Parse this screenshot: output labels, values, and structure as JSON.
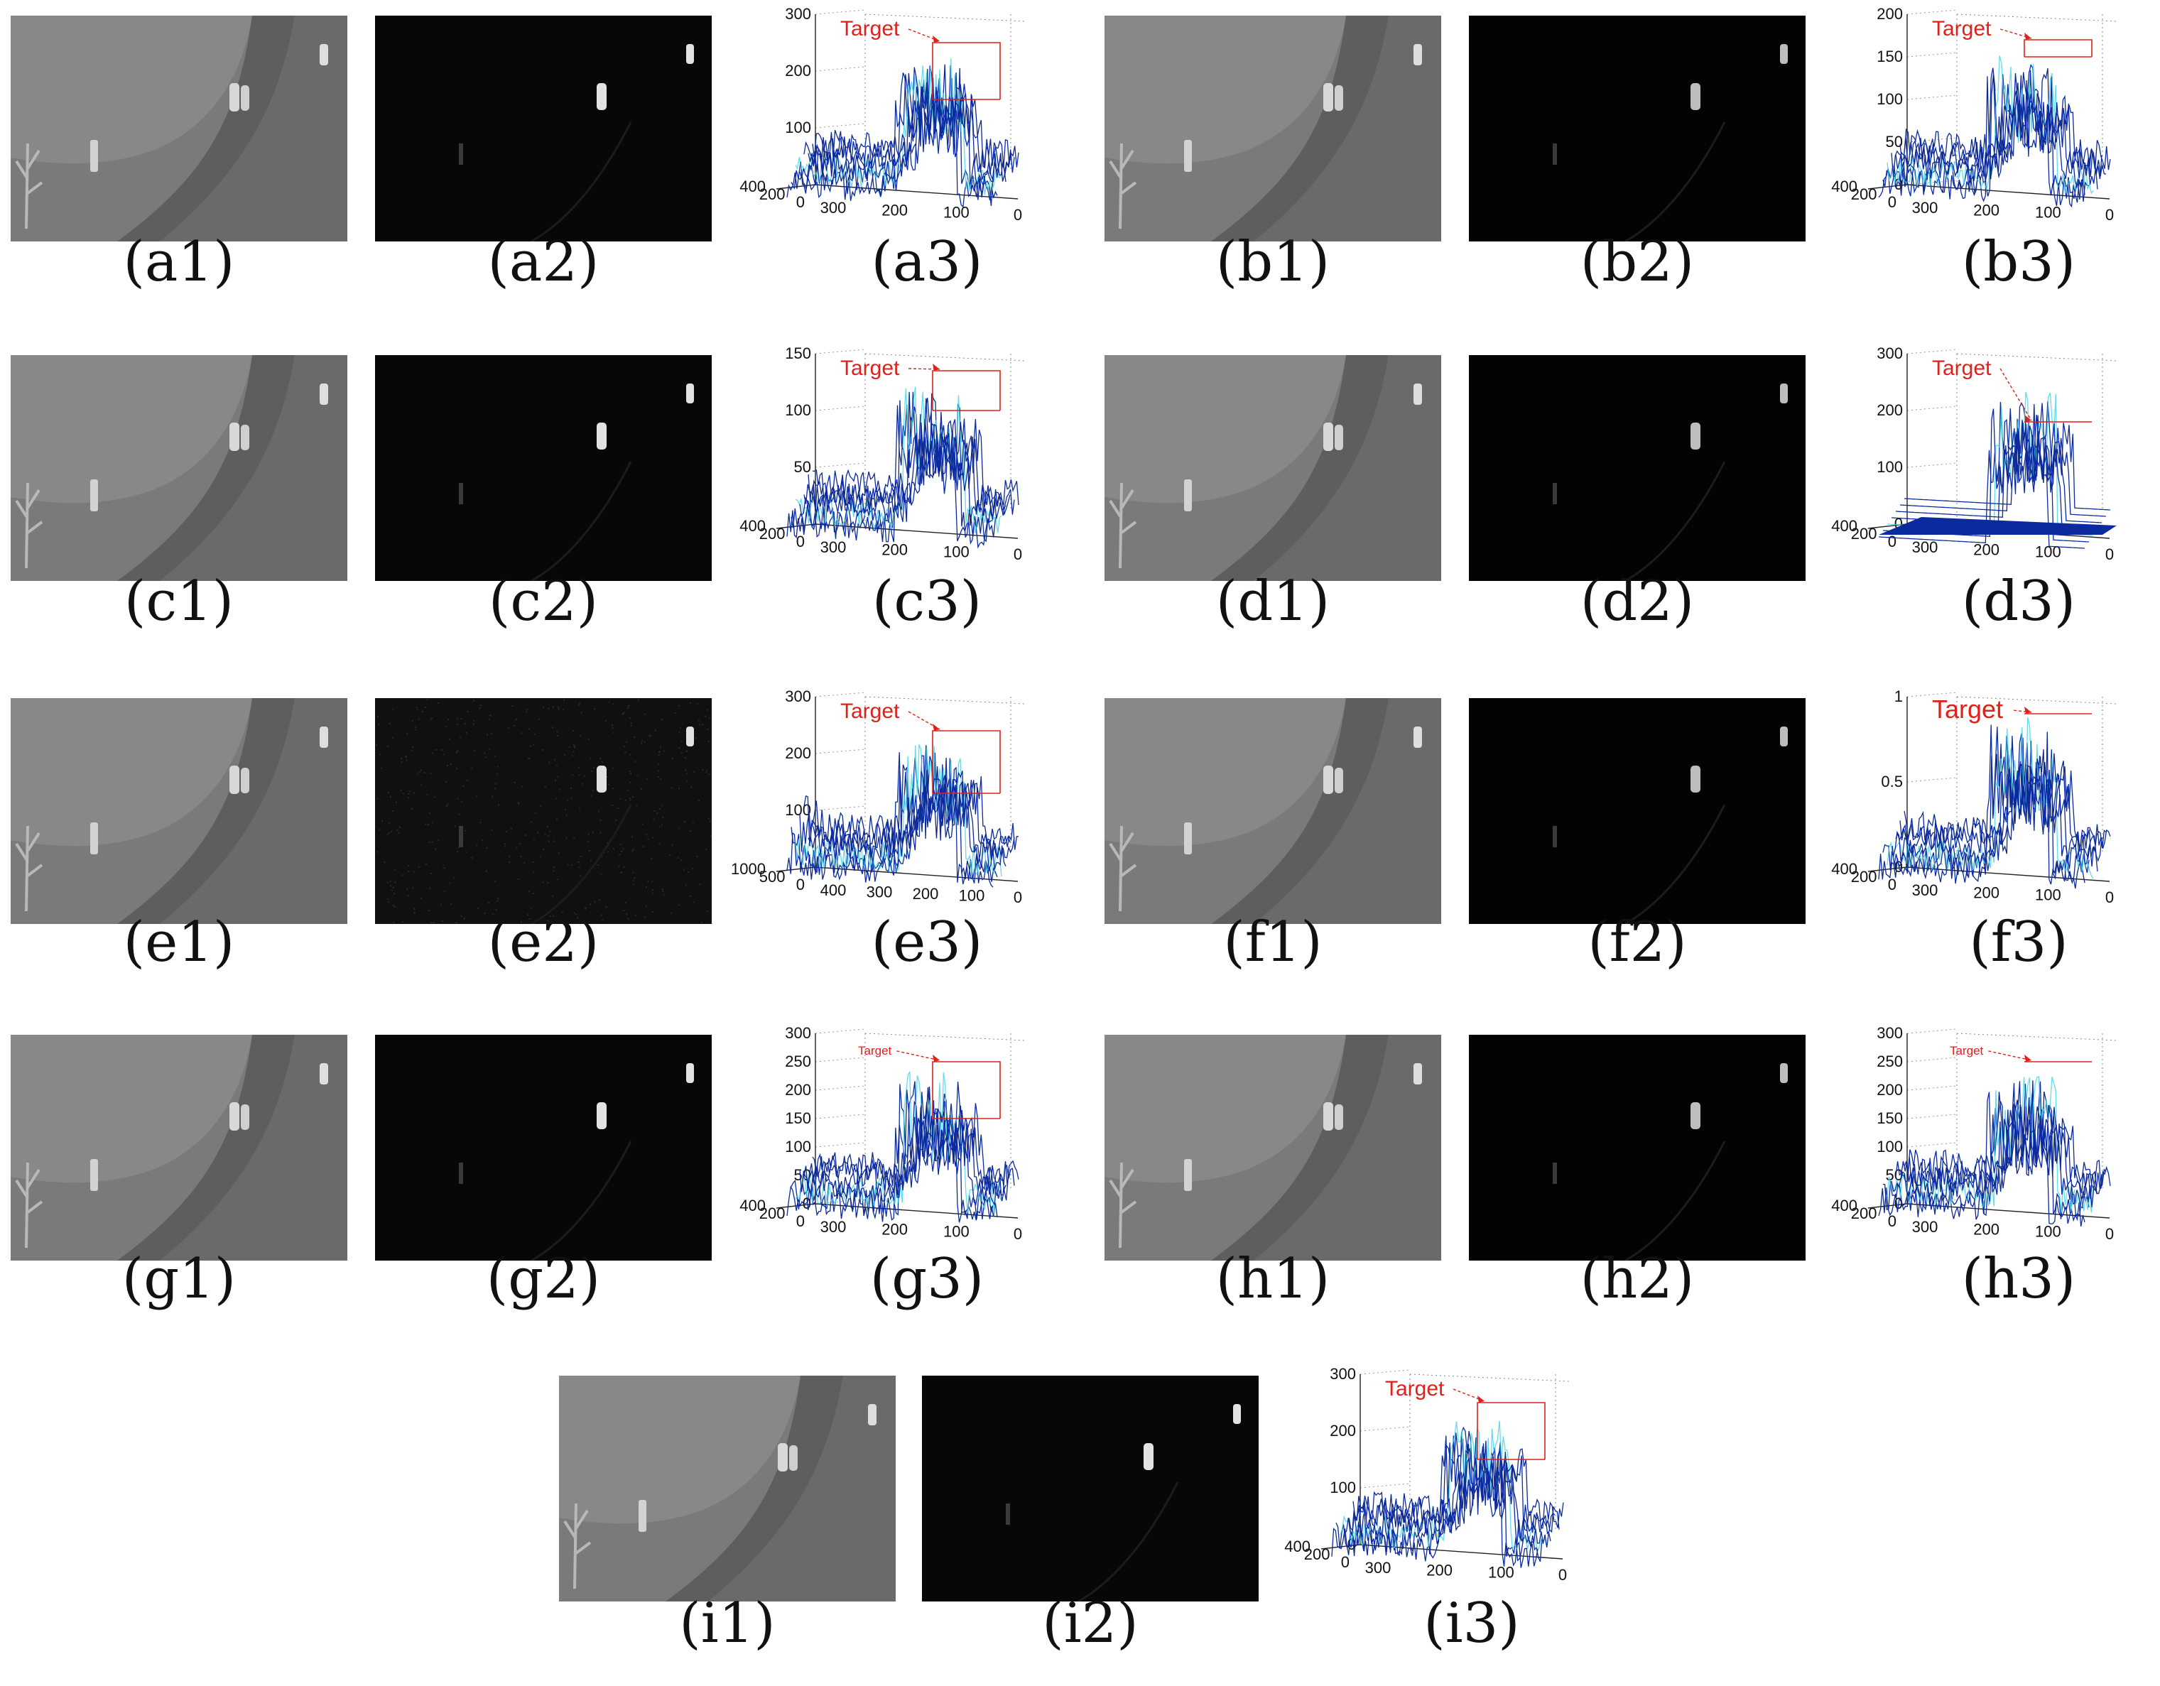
{
  "figure": {
    "panels": [
      {
        "id": "a",
        "kind": "scene",
        "caption": "(a1)",
        "bright": 1
      },
      {
        "id": "a",
        "kind": "map",
        "caption": "(a2)",
        "style": "dark"
      },
      {
        "id": "a",
        "kind": "plot",
        "caption": "(a3)",
        "z_ticks": [
          "300",
          "200",
          "100"
        ],
        "zmax": 300,
        "depth_ticks": [
          "400",
          "200",
          "0"
        ],
        "x_ticks": [
          "300",
          "200",
          "100",
          "0"
        ],
        "target_label": "Target",
        "target_size": "large",
        "target_box": [
          150,
          250
        ],
        "peak": 250
      },
      {
        "id": "b",
        "kind": "scene",
        "caption": "(b1)",
        "bright": 1
      },
      {
        "id": "b",
        "kind": "map",
        "caption": "(b2)",
        "style": "black"
      },
      {
        "id": "b",
        "kind": "plot",
        "caption": "(b3)",
        "z_ticks": [
          "200",
          "150",
          "100",
          "50",
          "0"
        ],
        "zmax": 200,
        "depth_ticks": [
          "400",
          "200",
          "0"
        ],
        "x_ticks": [
          "300",
          "200",
          "100",
          "0"
        ],
        "target_label": "Target",
        "target_size": "large",
        "target_box": [
          150,
          170
        ],
        "peak": 160
      },
      {
        "id": "c",
        "kind": "scene",
        "caption": "(c1)",
        "bright": 1
      },
      {
        "id": "c",
        "kind": "map",
        "caption": "(c2)",
        "style": "dark"
      },
      {
        "id": "c",
        "kind": "plot",
        "caption": "(c3)",
        "z_ticks": [
          "150",
          "100",
          "50"
        ],
        "zmax": 150,
        "depth_ticks": [
          "400",
          "200",
          "0"
        ],
        "x_ticks": [
          "300",
          "200",
          "100",
          "0"
        ],
        "target_label": "Target",
        "target_size": "large",
        "target_box": [
          100,
          135
        ],
        "peak": 130
      },
      {
        "id": "d",
        "kind": "scene",
        "caption": "(d1)",
        "bright": 1
      },
      {
        "id": "d",
        "kind": "map",
        "caption": "(d2)",
        "style": "black"
      },
      {
        "id": "d",
        "kind": "plot",
        "caption": "(d3)",
        "z_ticks": [
          "300",
          "200",
          "100",
          "0"
        ],
        "zmax": 300,
        "depth_ticks": [
          "400",
          "200",
          "0"
        ],
        "x_ticks": [
          "300",
          "200",
          "100",
          "0"
        ],
        "target_label": "Target",
        "target_size": "large",
        "target_box": [
          180,
          180
        ],
        "peak": 250
      },
      {
        "id": "e",
        "kind": "scene",
        "caption": "(e1)",
        "bright": 0.9
      },
      {
        "id": "e",
        "kind": "map",
        "caption": "(e2)",
        "style": "noisy"
      },
      {
        "id": "e",
        "kind": "plot",
        "caption": "(e3)",
        "z_ticks": [
          "300",
          "200",
          "100"
        ],
        "zmax": 300,
        "depth_ticks": [
          "1000",
          "500",
          "0"
        ],
        "x_ticks": [
          "400",
          "300",
          "200",
          "100",
          "0"
        ],
        "target_label": "Target",
        "target_size": "large",
        "target_box": [
          130,
          240
        ],
        "peak": 240
      },
      {
        "id": "f",
        "kind": "scene",
        "caption": "(f1)",
        "bright": 1
      },
      {
        "id": "f",
        "kind": "map",
        "caption": "(f2)",
        "style": "black"
      },
      {
        "id": "f",
        "kind": "plot",
        "caption": "(f3)",
        "z_ticks": [
          "1",
          "0.5",
          "0"
        ],
        "zmax": 1,
        "depth_ticks": [
          "400",
          "200",
          "0"
        ],
        "x_ticks": [
          "300",
          "200",
          "100",
          "0"
        ],
        "target_label": "Target",
        "target_size": "xlarge",
        "target_box": [
          0.9,
          0.9
        ],
        "peak": 0.95
      },
      {
        "id": "g",
        "kind": "scene",
        "caption": "(g1)",
        "bright": 1
      },
      {
        "id": "g",
        "kind": "map",
        "caption": "(g2)",
        "style": "dark"
      },
      {
        "id": "g",
        "kind": "plot",
        "caption": "(g3)",
        "z_ticks": [
          "300",
          "250",
          "200",
          "150",
          "100",
          "50",
          "0"
        ],
        "zmax": 300,
        "depth_ticks": [
          "400",
          "200",
          "0"
        ],
        "x_ticks": [
          "300",
          "200",
          "100",
          "0"
        ],
        "target_label": "Target",
        "target_size": "small",
        "target_box": [
          150,
          250
        ],
        "peak": 250
      },
      {
        "id": "h",
        "kind": "scene",
        "caption": "(h1)",
        "bright": 1
      },
      {
        "id": "h",
        "kind": "map",
        "caption": "(h2)",
        "style": "black"
      },
      {
        "id": "h",
        "kind": "plot",
        "caption": "(h3)",
        "z_ticks": [
          "300",
          "250",
          "200",
          "150",
          "100",
          "50",
          "0"
        ],
        "zmax": 300,
        "depth_ticks": [
          "400",
          "200",
          "0"
        ],
        "x_ticks": [
          "300",
          "200",
          "100",
          "0"
        ],
        "target_label": "Target",
        "target_size": "small",
        "target_box": [
          250,
          250
        ],
        "peak": 245
      },
      {
        "id": "i",
        "kind": "scene",
        "caption": "(i1)",
        "bright": 1
      },
      {
        "id": "i",
        "kind": "map",
        "caption": "(i2)",
        "style": "dark"
      },
      {
        "id": "i",
        "kind": "plot",
        "caption": "(i3)",
        "z_ticks": [
          "300",
          "200",
          "100",
          "0"
        ],
        "zmax": 300,
        "depth_ticks": [
          "400",
          "200",
          "0"
        ],
        "x_ticks": [
          "300",
          "200",
          "100",
          "0"
        ],
        "target_label": "Target",
        "target_size": "large",
        "target_box": [
          150,
          250
        ],
        "peak": 235
      }
    ],
    "colors": {
      "target": "#e0201a",
      "mesh": "#0b2a9e",
      "mesh_hi": "#3bd4e6",
      "scene_bg": "#7c7c7c",
      "map_bg": "#050505"
    }
  }
}
